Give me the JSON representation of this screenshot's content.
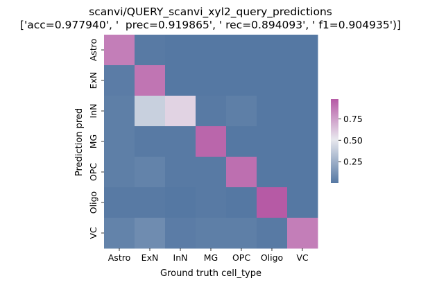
{
  "chart_data": {
    "type": "heatmap",
    "title": "scanvi/QUERY_scanvi_xyl2_query_predictions",
    "subtitle": "['acc=0.977940', '  prec=0.919865', ' rec=0.894093', ' f1=0.904935')]",
    "xlabel": "Ground truth cell_type",
    "ylabel": "Prediction pred",
    "x_categories": [
      "Astro",
      "ExN",
      "InN",
      "MG",
      "OPC",
      "Oligo",
      "VC"
    ],
    "y_categories": [
      "Astro",
      "ExN",
      "InN",
      "MG",
      "OPC",
      "Oligo",
      "VC"
    ],
    "values": [
      [
        0.86,
        0.01,
        0.0,
        0.0,
        0.0,
        0.0,
        0.0
      ],
      [
        0.02,
        0.89,
        0.0,
        0.0,
        0.0,
        0.0,
        0.0
      ],
      [
        0.03,
        0.4,
        0.58,
        0.01,
        0.03,
        0.0,
        0.0
      ],
      [
        0.03,
        0.01,
        0.01,
        0.94,
        0.0,
        0.0,
        0.0
      ],
      [
        0.03,
        0.05,
        0.01,
        0.01,
        0.91,
        0.0,
        0.0
      ],
      [
        0.01,
        0.01,
        0.0,
        0.01,
        0.0,
        0.99,
        0.0
      ],
      [
        0.05,
        0.09,
        0.02,
        0.03,
        0.03,
        0.01,
        0.86
      ]
    ],
    "colorbar": {
      "ticks": [
        0.25,
        0.5,
        0.75
      ],
      "tick_labels": [
        "0.25",
        "0.50",
        "0.75"
      ],
      "range": [
        0.0,
        0.98
      ],
      "colormap": [
        "#5578a3",
        "#e8e8ee",
        "#b65aa5"
      ]
    }
  }
}
